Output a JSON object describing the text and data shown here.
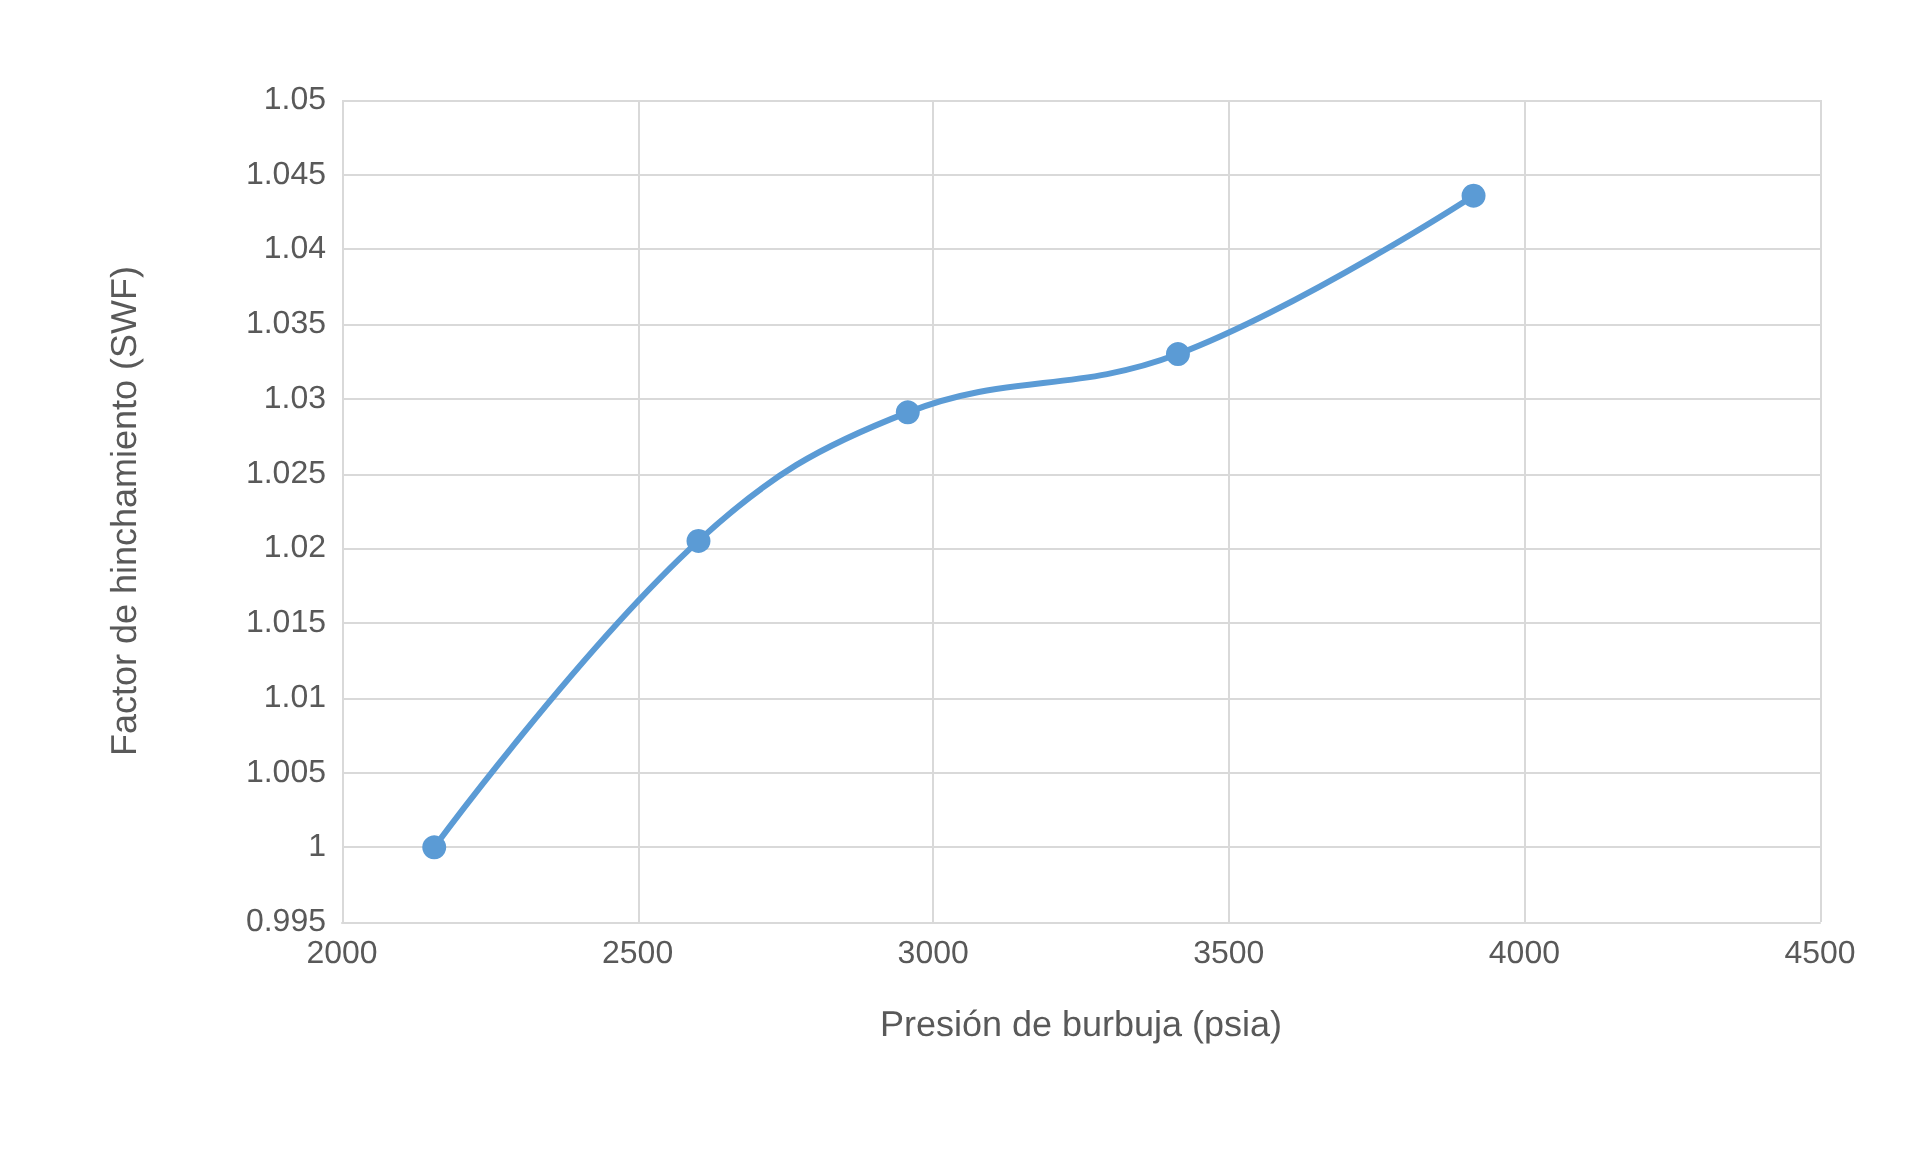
{
  "chart_data": {
    "type": "line",
    "xlabel": "Presión de burbuja (psia)",
    "ylabel": "Factor de hinchamiento (SWF)",
    "x": [
      2156,
      2603,
      2957,
      3414,
      3914
    ],
    "series": [
      {
        "color": "#5b9bd5",
        "values": [
          1.0,
          1.0205,
          1.0291,
          1.033,
          1.0436
        ]
      }
    ],
    "xlim": [
      2000,
      4500
    ],
    "xticks": [
      2000,
      2500,
      3000,
      3500,
      4000,
      4500
    ],
    "ylim": [
      0.995,
      1.05
    ],
    "yticks": [
      0.995,
      1,
      1.005,
      1.01,
      1.015,
      1.02,
      1.025,
      1.03,
      1.035,
      1.04,
      1.045,
      1.05
    ],
    "grid": true,
    "marker": "circle",
    "line_style": "solid"
  }
}
